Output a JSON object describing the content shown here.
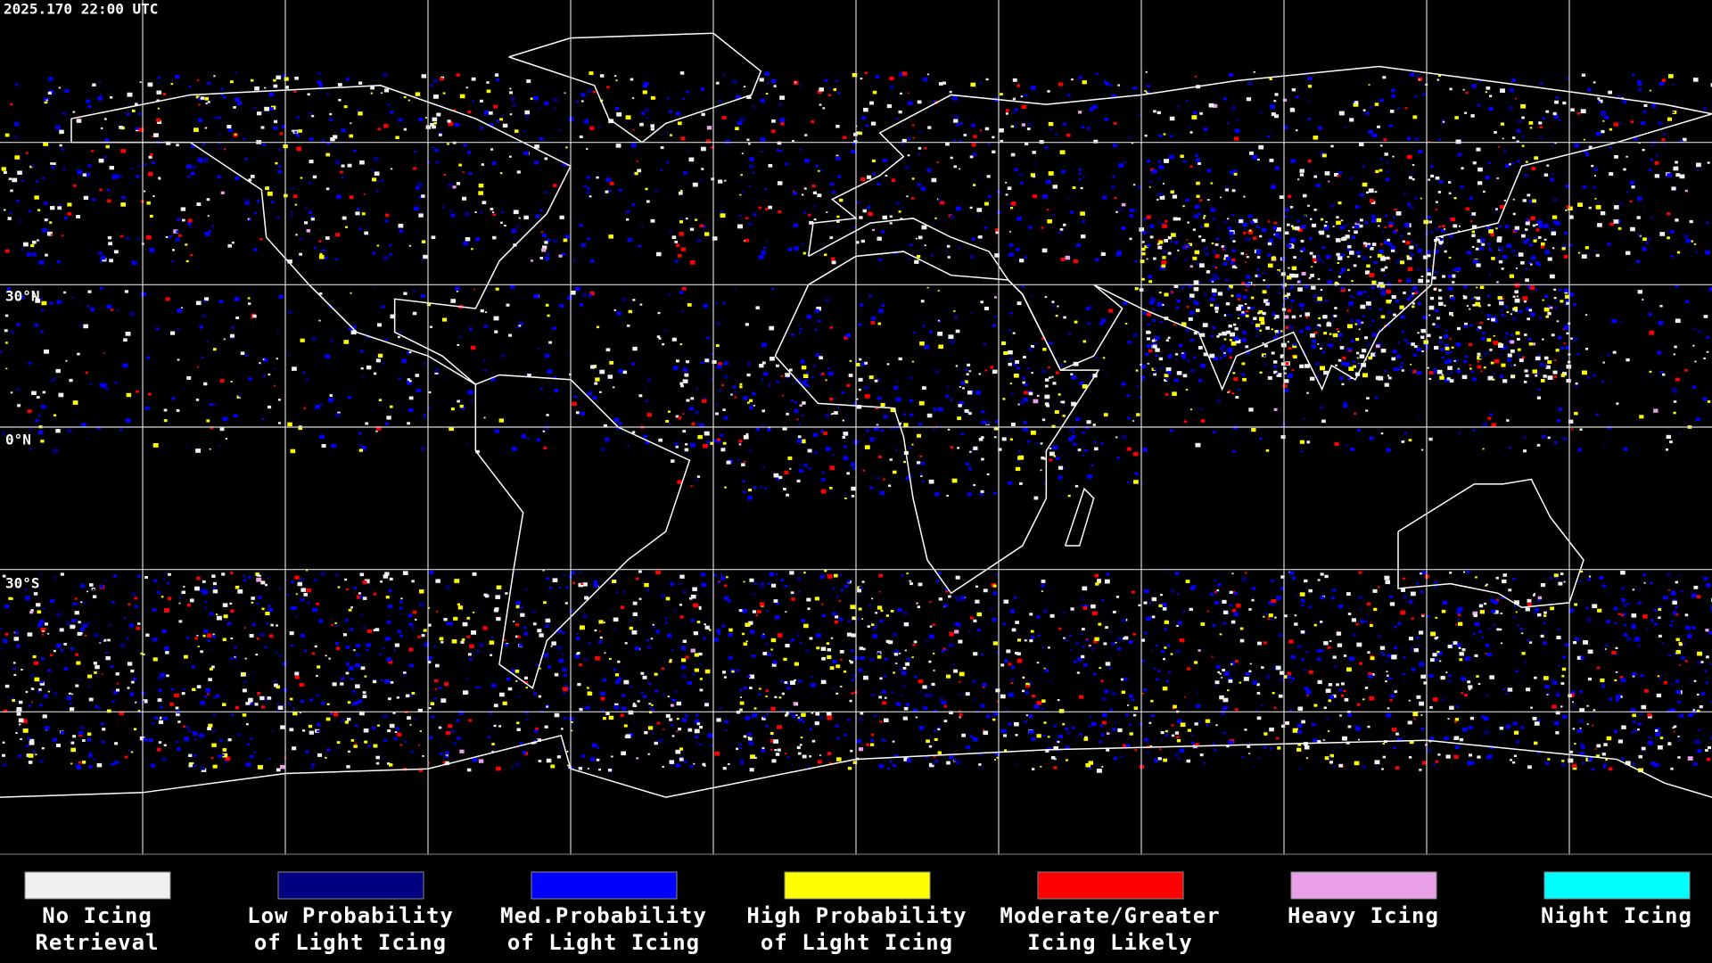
{
  "timestamp": "2025.170 22:00 UTC",
  "latitude_labels": [
    "30°N",
    "0°N",
    "30°S"
  ],
  "legend": {
    "items": [
      {
        "label": [
          "No Icing",
          "Retrieval"
        ],
        "color": "#f0f0f0"
      },
      {
        "label": [
          "Low Probability",
          "of Light Icing"
        ],
        "color": "#000080"
      },
      {
        "label": [
          "Med.Probability",
          "of Light Icing"
        ],
        "color": "#0000ff"
      },
      {
        "label": [
          "High Probability",
          "of Light Icing"
        ],
        "color": "#ffff00"
      },
      {
        "label": [
          "Moderate/Greater",
          "Icing Likely"
        ],
        "color": "#ff0000"
      },
      {
        "label": [
          "Heavy Icing"
        ],
        "color": "#e8a0e8"
      },
      {
        "label": [
          "Night Icing"
        ],
        "color": "#00ffff"
      }
    ]
  }
}
